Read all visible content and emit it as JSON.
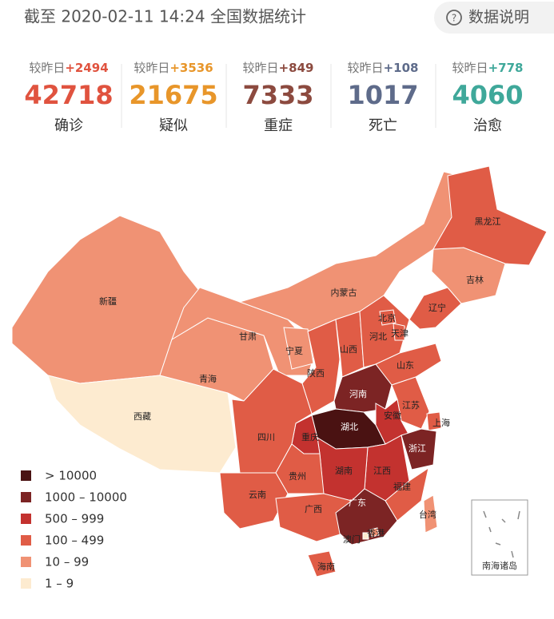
{
  "header": {
    "title": "截至 2020-02-11 14:24 全国数据统计",
    "help": "数据说明"
  },
  "stats": [
    {
      "label": "较昨日",
      "delta": "+2494",
      "value": 42718,
      "name": "确诊",
      "color": "#e0533f"
    },
    {
      "label": "较昨日",
      "delta": "+3536",
      "value": 21675,
      "name": "疑似",
      "color": "#e8962a"
    },
    {
      "label": "较昨日",
      "delta": "+849",
      "value": 7333,
      "name": "重症",
      "color": "#8c4a3f"
    },
    {
      "label": "较昨日",
      "delta": "+108",
      "value": 1017,
      "name": "死亡",
      "color": "#5e6b8a"
    },
    {
      "label": "较昨日",
      "delta": "+778",
      "value": 4060,
      "name": "治愈",
      "color": "#3fa89a"
    }
  ],
  "map": {
    "legend": [
      {
        "label": "> 10000",
        "color": "#4a1212"
      },
      {
        "label": "1000 – 10000",
        "color": "#7c2424"
      },
      {
        "label": "500 – 999",
        "color": "#c3322f"
      },
      {
        "label": "100 – 499",
        "color": "#e05c46"
      },
      {
        "label": "10 – 99",
        "color": "#f09274"
      },
      {
        "label": "1 – 9",
        "color": "#fdebd0"
      }
    ],
    "regions": [
      {
        "name": "新疆",
        "level": 4
      },
      {
        "name": "西藏",
        "level": 5
      },
      {
        "name": "青海",
        "level": 4
      },
      {
        "name": "甘肃",
        "level": 4
      },
      {
        "name": "内蒙古",
        "level": 4
      },
      {
        "name": "宁夏",
        "level": 4
      },
      {
        "name": "陕西",
        "level": 3
      },
      {
        "name": "山西",
        "level": 3
      },
      {
        "name": "河北",
        "level": 3
      },
      {
        "name": "北京",
        "level": 3
      },
      {
        "name": "天津",
        "level": 3
      },
      {
        "name": "山东",
        "level": 3
      },
      {
        "name": "辽宁",
        "level": 3
      },
      {
        "name": "吉林",
        "level": 4
      },
      {
        "name": "黑龙江",
        "level": 3
      },
      {
        "name": "河南",
        "level": 1
      },
      {
        "name": "江苏",
        "level": 3
      },
      {
        "name": "上海",
        "level": 3
      },
      {
        "name": "安徽",
        "level": 2
      },
      {
        "name": "湖北",
        "level": 0
      },
      {
        "name": "浙江",
        "level": 1
      },
      {
        "name": "江西",
        "level": 2
      },
      {
        "name": "福建",
        "level": 3
      },
      {
        "name": "湖南",
        "level": 2
      },
      {
        "name": "重庆",
        "level": 2
      },
      {
        "name": "四川",
        "level": 3
      },
      {
        "name": "贵州",
        "level": 3
      },
      {
        "name": "云南",
        "level": 3
      },
      {
        "name": "广西",
        "level": 3
      },
      {
        "name": "广东",
        "level": 1
      },
      {
        "name": "海南",
        "level": 3
      },
      {
        "name": "台湾",
        "level": 4
      },
      {
        "name": "香港",
        "level": 4
      },
      {
        "name": "澳门",
        "level": 5
      }
    ],
    "inset_label": "南海诸岛"
  }
}
